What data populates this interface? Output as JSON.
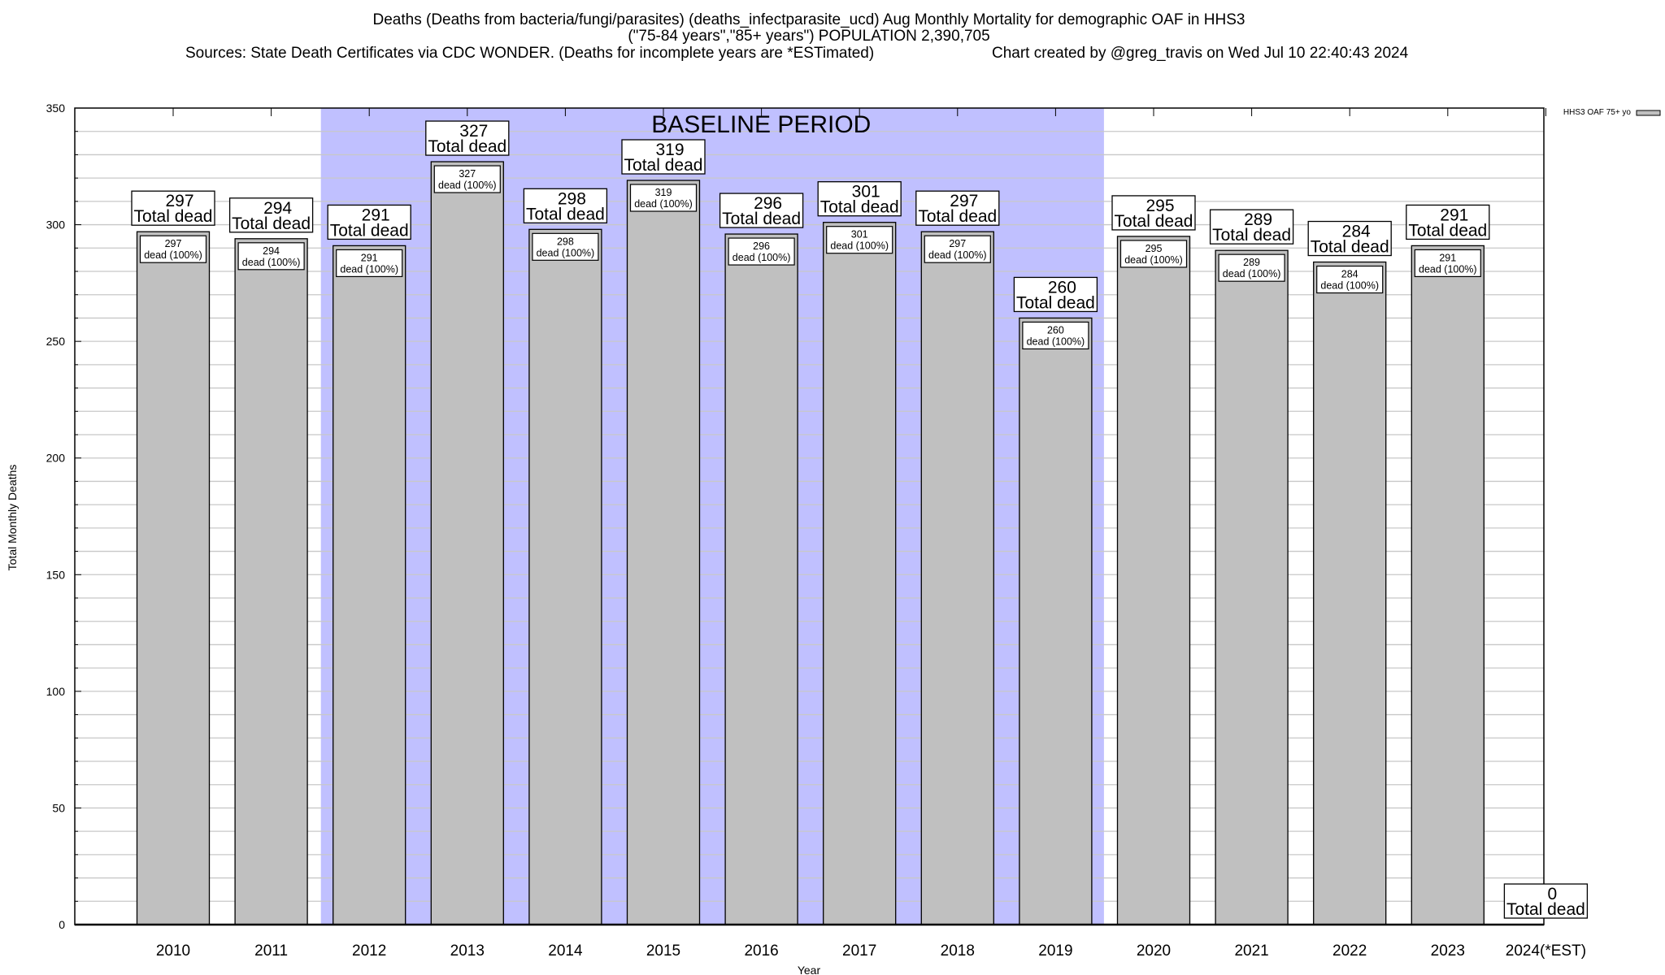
{
  "chart_data": {
    "type": "bar",
    "title_lines": [
      "Deaths (Deaths from bacteria/fungi/parasites) (deaths_infectparasite_ucd) Aug Monthly Mortality for demographic OAF in HHS3",
      "(\"75-84 years\",\"85+ years\") POPULATION 2,390,705"
    ],
    "sources": "Sources: State Death Certificates via CDC WONDER. (Deaths for incomplete years are *ESTimated)",
    "credit": "Chart created by @greg_travis on Wed Jul 10 22:40:43 2024",
    "xlabel": "Year",
    "ylabel": "Total Monthly Deaths",
    "ylim": [
      0,
      350
    ],
    "yticks": [
      0,
      50,
      100,
      150,
      200,
      250,
      300,
      350
    ],
    "grid": true,
    "legend": {
      "label": "HHS3 OAF 75+ yo",
      "placement": "top-right outside"
    },
    "categories": [
      "2010",
      "2011",
      "2012",
      "2013",
      "2014",
      "2015",
      "2016",
      "2017",
      "2018",
      "2019",
      "2020",
      "2021",
      "2022",
      "2023",
      "2024(*EST)"
    ],
    "values": [
      297,
      294,
      291,
      327,
      298,
      319,
      296,
      301,
      297,
      260,
      295,
      289,
      284,
      291,
      0
    ],
    "outer_label_suffix": "Total dead",
    "inner_label_suffix": "dead (100%)",
    "baseline": {
      "label": "BASELINE PERIOD",
      "from": "2012",
      "to": "2019"
    },
    "colors": {
      "bar": "#c0c0c0",
      "baseline": "#c0c0ff",
      "grid": "#c8c8c8"
    }
  }
}
